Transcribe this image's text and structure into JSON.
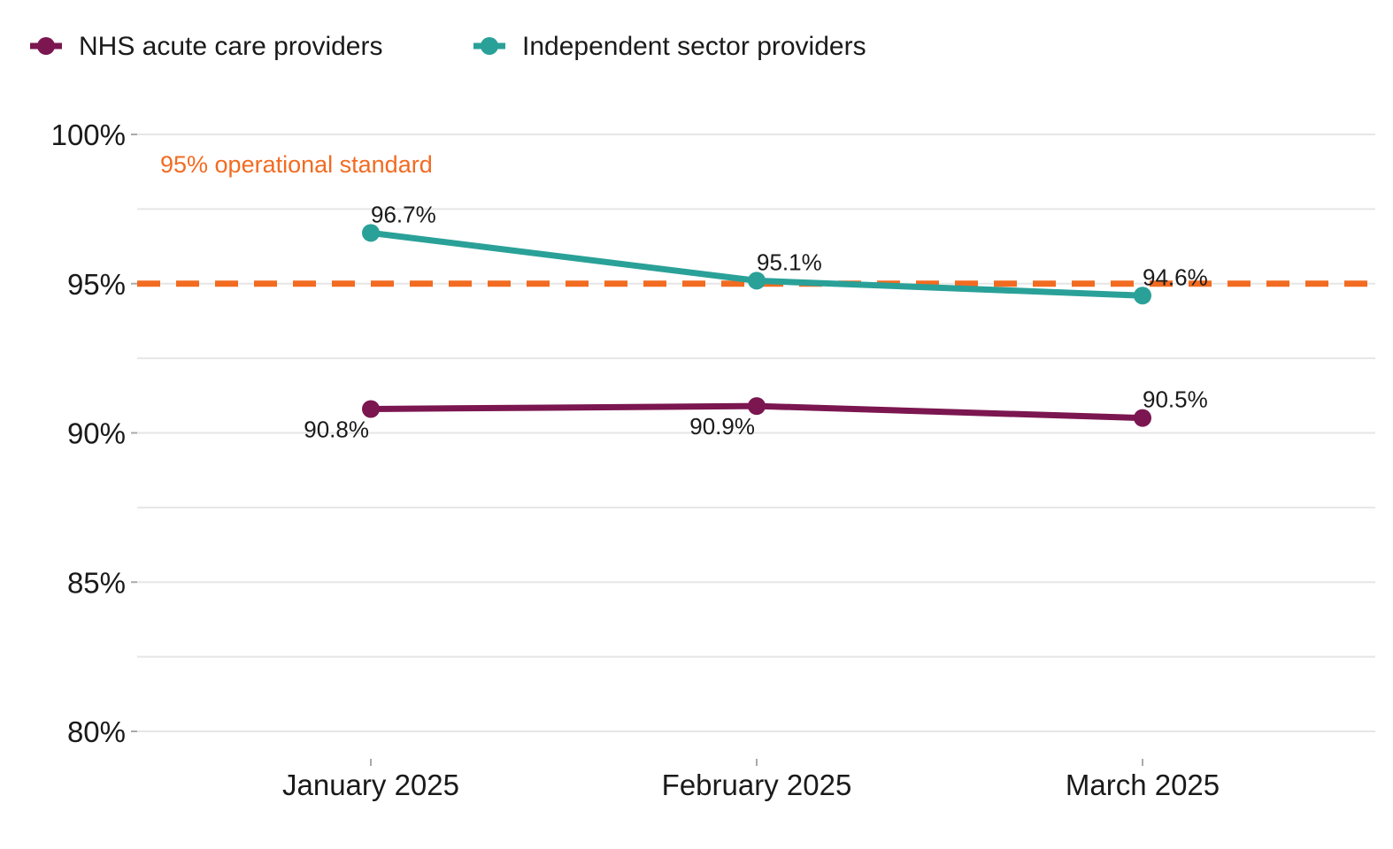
{
  "chart_data": {
    "type": "line",
    "categories": [
      "January 2025",
      "February 2025",
      "March 2025"
    ],
    "series": [
      {
        "name": "NHS acute care providers",
        "color": "#7b1650",
        "values": [
          90.8,
          90.9,
          90.5
        ],
        "labels": [
          "90.8%",
          "90.9%",
          "90.5%"
        ],
        "label_positions": [
          "below-left",
          "below-left",
          "above-right"
        ]
      },
      {
        "name": "Independent sector providers",
        "color": "#2aa198",
        "values": [
          96.7,
          95.1,
          94.6
        ],
        "labels": [
          "96.7%",
          "95.1%",
          "94.6%"
        ],
        "label_positions": [
          "above-right",
          "above-right",
          "above-right"
        ]
      }
    ],
    "reference_line": {
      "value": 95,
      "label": "95% operational standard",
      "color": "#f26b21",
      "style": "dashed"
    },
    "ylim": [
      80,
      100
    ],
    "y_ticks": [
      80,
      85,
      90,
      95,
      100
    ],
    "y_tick_labels": [
      "80%",
      "85%",
      "90%",
      "95%",
      "100%"
    ],
    "title": "",
    "xlabel": "",
    "ylabel": "",
    "grid": true,
    "legend_position": "top-left"
  }
}
